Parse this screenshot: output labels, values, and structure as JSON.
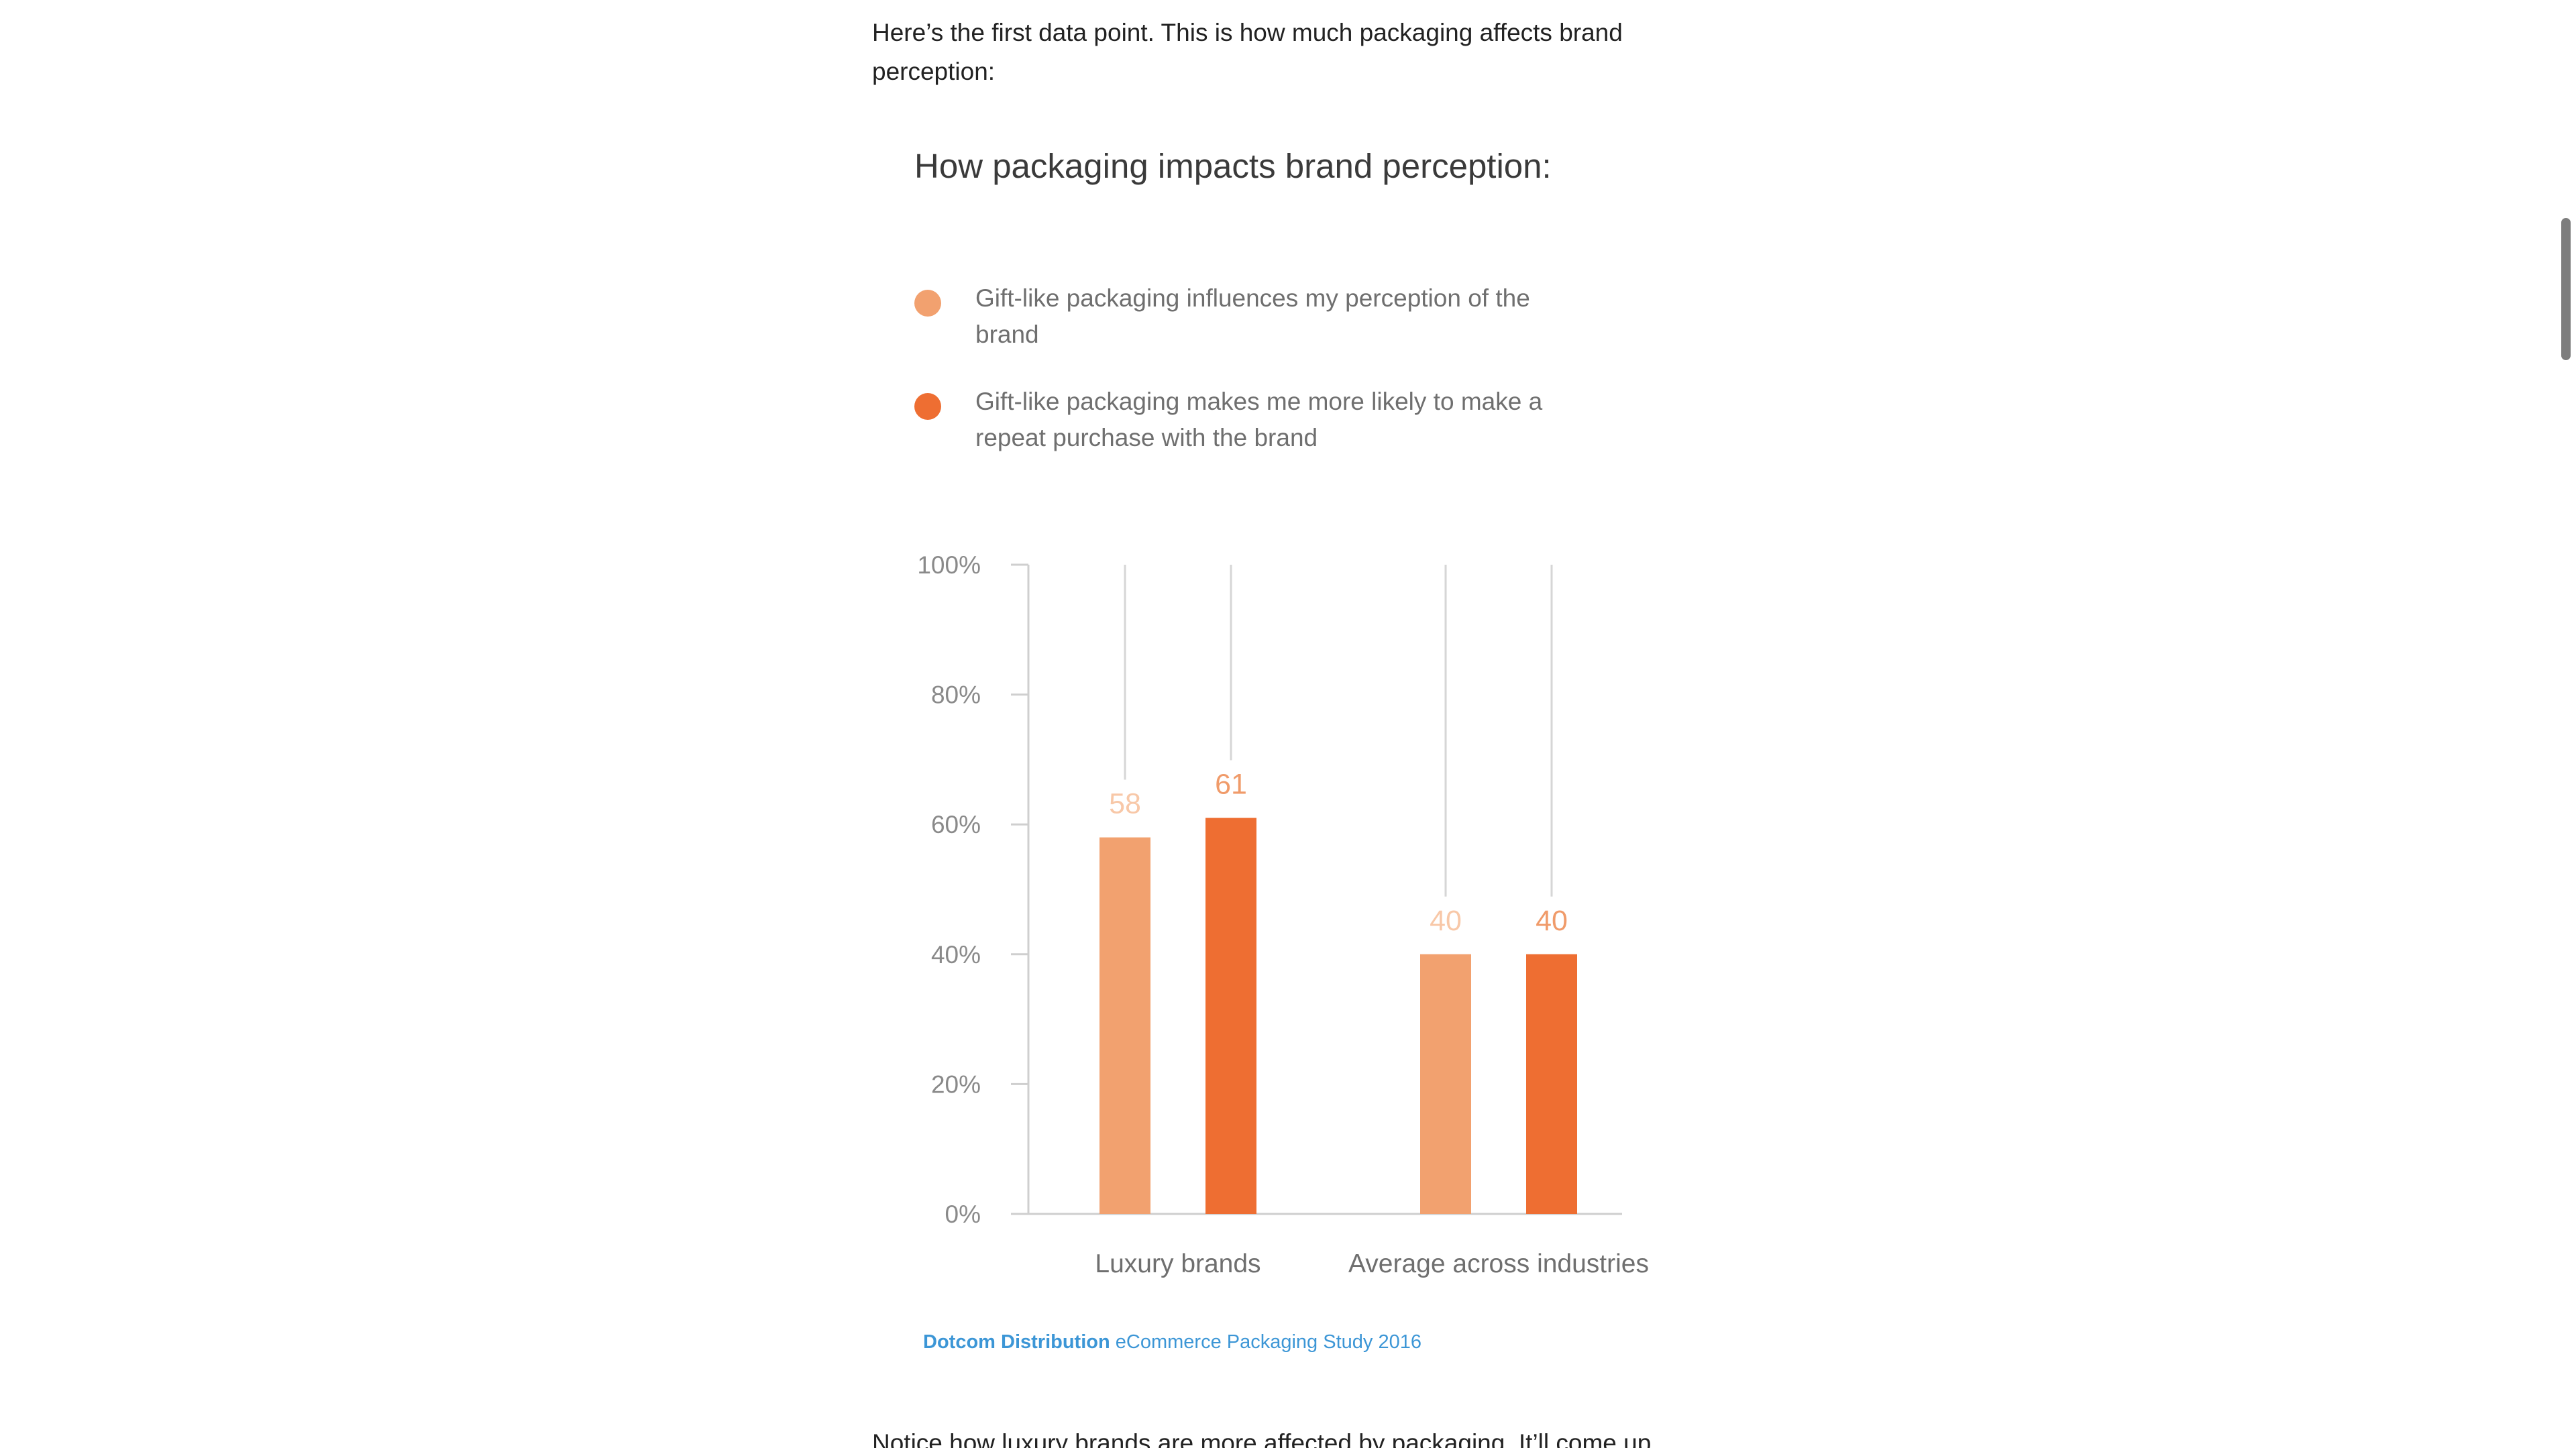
{
  "article": {
    "intro_text": "Here’s the first data point. This is how much packaging affects brand perception:",
    "outro_text": "Notice how luxury brands are more affected by packaging. It’ll come up"
  },
  "source": {
    "brand": "Dotcom Distribution",
    "study": "eCommerce Packaging Study 2016",
    "color": "#3c96d6"
  },
  "chart_data": {
    "type": "bar",
    "title": "How packaging impacts brand perception:",
    "categories": [
      "Luxury brands",
      "Average across industries"
    ],
    "series": [
      {
        "name": "Gift-like packaging influences my perception of the brand",
        "values": [
          58,
          40
        ],
        "color": "#f2a16f",
        "label_color": "#f8c8a8"
      },
      {
        "name": "Gift-like packaging makes me more likely to make a repeat purchase with the brand",
        "values": [
          61,
          40
        ],
        "color": "#ee6e32",
        "label_color": "#f09b6a"
      }
    ],
    "yticks": [
      "0%",
      "20%",
      "40%",
      "60%",
      "80%",
      "100%"
    ],
    "ylim": [
      0,
      100
    ],
    "xlabel": "",
    "ylabel": "",
    "legend_position": "top-left",
    "grid": false
  }
}
